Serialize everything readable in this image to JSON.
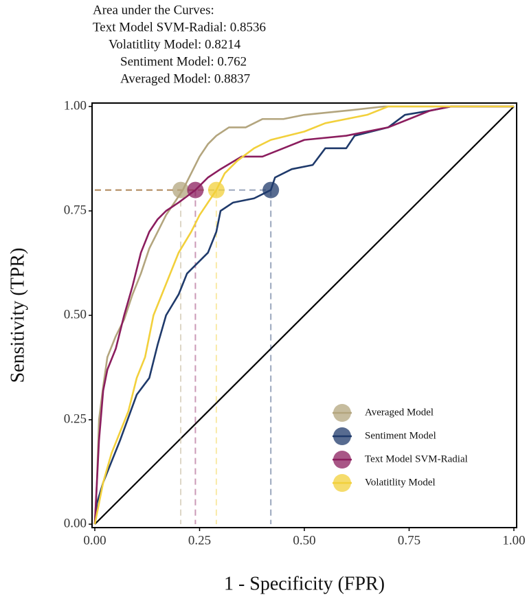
{
  "chart_data": {
    "type": "line",
    "annotations": [
      "Area under the Curves:",
      "Text Model SVM-Radial: 0.8536",
      "Volatitlity Model: 0.8214",
      "Sentiment Model: 0.762",
      "Averaged Model: 0.8837"
    ],
    "x_label": "1 - Specificity (FPR)",
    "y_label": "Sensitivity (TPR)",
    "xlim": [
      0,
      1
    ],
    "ylim": [
      0,
      1
    ],
    "xticks": [
      {
        "value": 0,
        "label": "0.00"
      },
      {
        "value": 0.25,
        "label": "0.25"
      },
      {
        "value": 0.5,
        "label": "0.50"
      },
      {
        "value": 0.75,
        "label": "0.75"
      },
      {
        "value": 1,
        "label": "1.00"
      }
    ],
    "yticks": [
      {
        "value": 0,
        "label": "0.00"
      },
      {
        "value": 0.25,
        "label": "0.25"
      },
      {
        "value": 0.5,
        "label": "0.50"
      },
      {
        "value": 0.75,
        "label": "0.75"
      },
      {
        "value": 1,
        "label": "1.00"
      }
    ],
    "legend": "bottom-right",
    "series": [
      {
        "name": "Averaged Model",
        "color": "#b3a57e",
        "marker_x": 0.205,
        "marker_y": 0.8,
        "x": [
          0,
          0.005,
          0.01,
          0.02,
          0.03,
          0.05,
          0.07,
          0.09,
          0.11,
          0.13,
          0.15,
          0.17,
          0.19,
          0.21,
          0.23,
          0.25,
          0.27,
          0.29,
          0.32,
          0.36,
          0.4,
          0.45,
          0.5,
          0.6,
          0.69,
          1
        ],
        "values": [
          0,
          0.1,
          0.25,
          0.33,
          0.4,
          0.45,
          0.49,
          0.55,
          0.6,
          0.66,
          0.7,
          0.74,
          0.77,
          0.8,
          0.84,
          0.88,
          0.91,
          0.93,
          0.95,
          0.95,
          0.97,
          0.97,
          0.98,
          0.99,
          1,
          1
        ]
      },
      {
        "name": "Sentiment Model",
        "color": "#1f3a6b",
        "marker_x": 0.42,
        "marker_y": 0.8,
        "x": [
          0,
          0.005,
          0.02,
          0.04,
          0.06,
          0.1,
          0.13,
          0.15,
          0.17,
          0.2,
          0.22,
          0.27,
          0.29,
          0.3,
          0.33,
          0.38,
          0.42,
          0.43,
          0.47,
          0.52,
          0.55,
          0.6,
          0.62,
          0.7,
          0.74,
          0.8,
          0.85,
          1
        ],
        "values": [
          0,
          0.05,
          0.1,
          0.15,
          0.2,
          0.31,
          0.35,
          0.43,
          0.5,
          0.55,
          0.6,
          0.65,
          0.7,
          0.75,
          0.77,
          0.78,
          0.8,
          0.83,
          0.85,
          0.86,
          0.9,
          0.9,
          0.93,
          0.95,
          0.98,
          0.99,
          1,
          1
        ]
      },
      {
        "name": "Text Model SVM-Radial",
        "color": "#8b1d5e",
        "marker_x": 0.24,
        "marker_y": 0.8,
        "x": [
          0,
          0.005,
          0.01,
          0.02,
          0.03,
          0.05,
          0.07,
          0.09,
          0.11,
          0.13,
          0.15,
          0.17,
          0.2,
          0.24,
          0.27,
          0.3,
          0.35,
          0.4,
          0.45,
          0.5,
          0.6,
          0.7,
          0.75,
          0.8,
          0.85,
          1
        ],
        "values": [
          0,
          0.1,
          0.2,
          0.32,
          0.37,
          0.42,
          0.5,
          0.57,
          0.65,
          0.7,
          0.73,
          0.75,
          0.77,
          0.8,
          0.83,
          0.85,
          0.88,
          0.88,
          0.9,
          0.92,
          0.93,
          0.95,
          0.97,
          0.99,
          1,
          1
        ]
      },
      {
        "name": "Volatitlity Model",
        "color": "#f2d03b",
        "marker_x": 0.29,
        "marker_y": 0.8,
        "x": [
          0,
          0.01,
          0.02,
          0.04,
          0.06,
          0.08,
          0.1,
          0.12,
          0.14,
          0.16,
          0.18,
          0.2,
          0.23,
          0.25,
          0.29,
          0.31,
          0.34,
          0.38,
          0.42,
          0.5,
          0.55,
          0.6,
          0.65,
          0.7,
          1
        ],
        "values": [
          0,
          0.05,
          0.1,
          0.17,
          0.22,
          0.27,
          0.35,
          0.4,
          0.5,
          0.55,
          0.6,
          0.65,
          0.7,
          0.74,
          0.8,
          0.84,
          0.87,
          0.9,
          0.92,
          0.94,
          0.96,
          0.97,
          0.98,
          1,
          1
        ]
      }
    ]
  }
}
